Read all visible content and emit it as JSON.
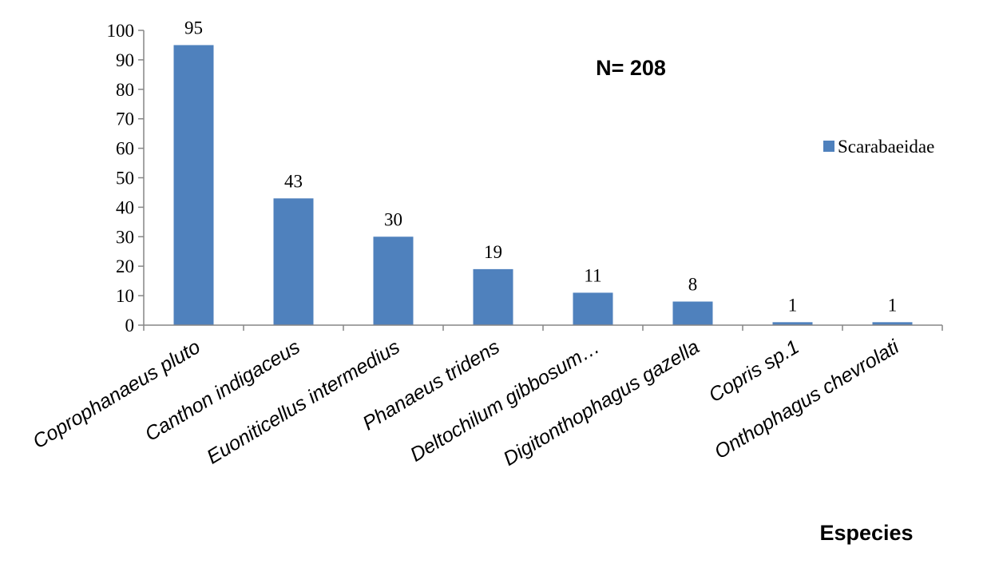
{
  "chart_data": {
    "type": "bar",
    "categories": [
      "Coprophanaeus pluto",
      "Canthon indigaceus",
      "Euoniticellus intermedius",
      "Phanaeus tridens",
      "Deltochilum gibbosum…",
      "Digitonthophagus gazella",
      "Copris sp.1",
      "Onthophagus chevrolati"
    ],
    "series": [
      {
        "name": "Scarabaeidae",
        "values": [
          95,
          43,
          30,
          19,
          11,
          8,
          1,
          1
        ],
        "color": "#4F81BD"
      }
    ],
    "data_labels": [
      "95",
      "43",
      "30",
      "19",
      "11",
      "8",
      "1",
      "1"
    ],
    "yticks": [
      0,
      10,
      20,
      30,
      40,
      50,
      60,
      70,
      80,
      90,
      100
    ],
    "ylim": [
      0,
      100
    ],
    "xlabel": "Especies",
    "ylabel": "",
    "annotation": "N= 208",
    "legend_position": "right",
    "grid": false
  }
}
